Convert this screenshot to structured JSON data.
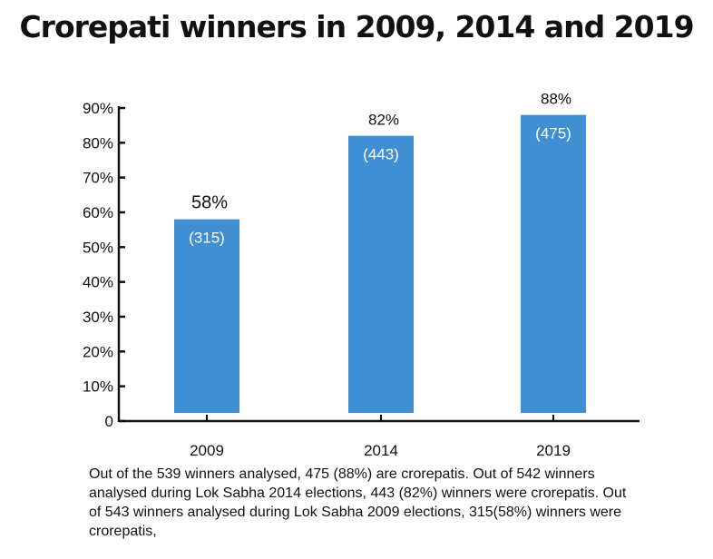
{
  "chart_data": {
    "type": "bar",
    "title": "Crorepati winners in 2009, 2014 and 2019",
    "categories": [
      "2009",
      "2014",
      "2019"
    ],
    "series": [
      {
        "values": [
          58,
          82,
          88
        ]
      }
    ],
    "value_labels": [
      "58%",
      "82%",
      "88%"
    ],
    "count_labels": [
      "(315)",
      "(443)",
      "(475)"
    ],
    "yticks": [
      {
        "value": 0,
        "label": "0"
      },
      {
        "value": 10,
        "label": "10%"
      },
      {
        "value": 20,
        "label": "20%"
      },
      {
        "value": 30,
        "label": "30%"
      },
      {
        "value": 40,
        "label": "40%"
      },
      {
        "value": 50,
        "label": "50%"
      },
      {
        "value": 60,
        "label": "60%"
      },
      {
        "value": 70,
        "label": "70%"
      },
      {
        "value": 80,
        "label": "80%"
      },
      {
        "value": 90,
        "label": "90%"
      }
    ],
    "xlabel": "",
    "ylabel": "",
    "ylim": [
      0,
      90
    ],
    "grid": false,
    "bar_color": "#3f8fd2",
    "caption": "Out of the 539 winners analysed, 475 (88%) are crorepatis. Out of 542 winners analysed during Lok Sabha 2014 elections, 443 (82%) winners were crorepatis. Out of 543 winners analysed during Lok Sabha 2009 elections, 315(58%) winners were crorepatis,"
  }
}
